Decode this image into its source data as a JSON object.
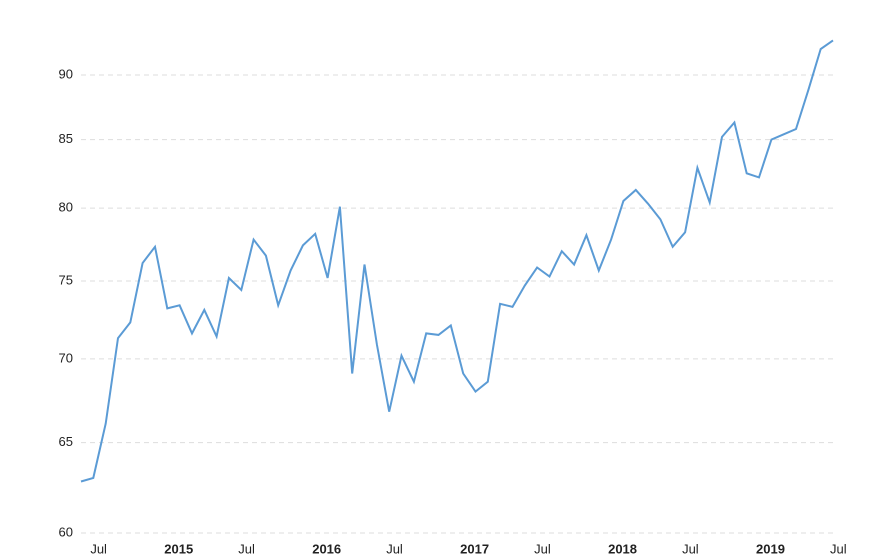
{
  "chart_data": {
    "type": "line",
    "y_scale": "log",
    "grid": true,
    "x": [
      "2014-06",
      "2014-07",
      "2014-08",
      "2014-09",
      "2014-10",
      "2014-11",
      "2014-12",
      "2015-01",
      "2015-02",
      "2015-03",
      "2015-04",
      "2015-05",
      "2015-06",
      "2015-07",
      "2015-08",
      "2015-09",
      "2015-10",
      "2015-11",
      "2015-12",
      "2016-01",
      "2016-02",
      "2016-03",
      "2016-04",
      "2016-05",
      "2016-06",
      "2016-07",
      "2016-08",
      "2016-09",
      "2016-10",
      "2016-11",
      "2016-12",
      "2017-01",
      "2017-02",
      "2017-03",
      "2017-04",
      "2017-05",
      "2017-06",
      "2017-07",
      "2017-08",
      "2017-09",
      "2017-10",
      "2017-11",
      "2017-12",
      "2018-01",
      "2018-02",
      "2018-03",
      "2018-04",
      "2018-05",
      "2018-06",
      "2018-07",
      "2018-08",
      "2018-09",
      "2018-10",
      "2018-11",
      "2018-12",
      "2019-01",
      "2019-02",
      "2019-03",
      "2019-04",
      "2019-05",
      "2019-06",
      "2019-07"
    ],
    "series": [
      {
        "color": "#5b9bd5",
        "values": [
          62.8,
          63.0,
          66.1,
          71.3,
          72.3,
          76.2,
          77.3,
          73.2,
          73.4,
          71.6,
          73.1,
          71.4,
          75.2,
          74.4,
          77.8,
          76.7,
          73.4,
          75.7,
          77.4,
          78.2,
          75.2,
          80.1,
          69.1,
          76.1,
          70.9,
          66.8,
          70.2,
          68.6,
          71.6,
          71.5,
          72.1,
          69.1,
          68.0,
          68.6,
          73.5,
          73.3,
          74.7,
          75.9,
          75.3,
          77.0,
          76.1,
          78.1,
          75.7,
          77.8,
          80.5,
          81.3,
          80.3,
          79.2,
          77.3,
          78.3,
          82.9,
          80.4,
          85.2,
          86.3,
          82.5,
          82.2,
          85.0,
          85.4,
          85.8,
          88.8,
          92.1,
          92.8
        ]
      }
    ],
    "xlim": [
      "2014-06",
      "2019-07"
    ],
    "xticks": [
      {
        "value": "2014-07",
        "label": "Jul"
      },
      {
        "value": "2015-01",
        "label": "2015"
      },
      {
        "value": "2015-07",
        "label": "Jul"
      },
      {
        "value": "2016-01",
        "label": "2016"
      },
      {
        "value": "2016-07",
        "label": "Jul"
      },
      {
        "value": "2017-01",
        "label": "2017"
      },
      {
        "value": "2017-07",
        "label": "Jul"
      },
      {
        "value": "2018-01",
        "label": "2018"
      },
      {
        "value": "2018-07",
        "label": "Jul"
      },
      {
        "value": "2019-01",
        "label": "2019"
      },
      {
        "value": "2019-07",
        "label": "Jul"
      }
    ],
    "ylim": [
      60,
      93
    ],
    "yticks": [
      60,
      65,
      70,
      75,
      80,
      85,
      90
    ]
  }
}
